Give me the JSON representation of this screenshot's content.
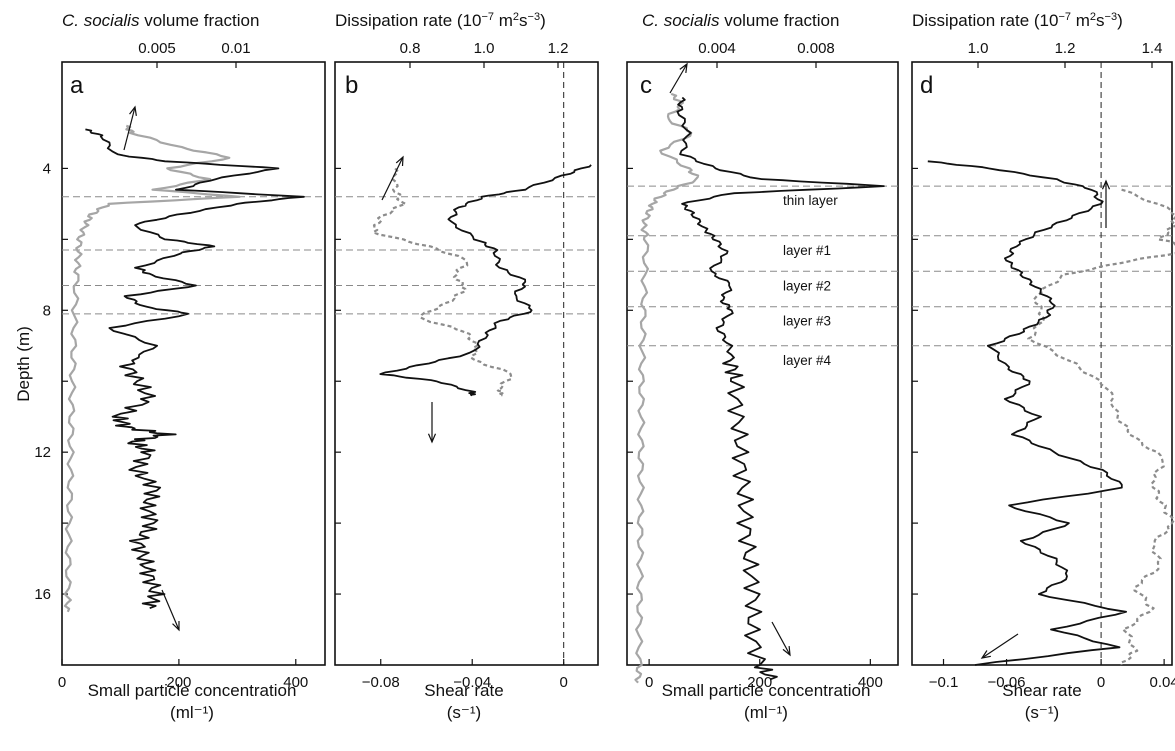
{
  "chart_data": [
    {
      "panel": "a",
      "type": "line",
      "top_axis": {
        "title_italic": "C. socialis",
        "title_rest": " volume fraction",
        "ticks": [
          "0.005",
          "0.01"
        ],
        "tick_values": [
          0.005,
          0.01
        ]
      },
      "bottom_axis": {
        "title": "Small particle concentration",
        "unit": "(ml⁻¹)",
        "ticks": [
          "0",
          "200",
          "400"
        ],
        "xlim": [
          0,
          450
        ]
      },
      "left_axis": {
        "title": "Depth (m)",
        "ticks": [
          "4",
          "8",
          "12",
          "16"
        ],
        "ylim": [
          1.0,
          18.0
        ],
        "inverted": true
      },
      "hlines": [
        4.8,
        6.3,
        7.3,
        8.1
      ],
      "series": [
        {
          "role": "small-particle-concentration",
          "color": "#111111",
          "y": [
            2.9,
            3.1,
            3.6,
            3.8,
            4.0,
            4.3,
            4.6,
            4.8,
            5.0,
            5.3,
            5.6,
            6.0,
            6.2,
            6.4,
            6.8,
            7.0,
            7.3,
            7.6,
            7.9,
            8.1,
            8.5,
            9.0,
            9.5,
            10.0,
            10.5,
            11.0,
            11.3,
            11.5,
            11.7,
            12.0,
            12.5,
            13.0,
            13.5,
            14.0,
            14.5,
            15.0,
            15.5,
            16.0,
            16.4
          ],
          "x": [
            40,
            70,
            90,
            180,
            370,
            260,
            200,
            410,
            300,
            200,
            120,
            180,
            260,
            200,
            130,
            150,
            230,
            110,
            140,
            220,
            80,
            160,
            110,
            130,
            150,
            95,
            110,
            180,
            120,
            150,
            125,
            160,
            145,
            155,
            130,
            140,
            150,
            160,
            150
          ]
        },
        {
          "role": "c-socialis-volume-fraction",
          "color": "#a6a6a6",
          "y": [
            2.8,
            3.0,
            3.4,
            3.7,
            4.0,
            4.3,
            4.6,
            4.8,
            5.0,
            5.3,
            5.6,
            6.0,
            6.5,
            7.0,
            8.0,
            9.0,
            10.0,
            11.0,
            12.0,
            13.0,
            14.0,
            15.0,
            16.0,
            16.5
          ],
          "x": [
            110,
            120,
            200,
            290,
            180,
            250,
            160,
            300,
            80,
            50,
            40,
            30,
            28,
            25,
            22,
            20,
            18,
            16,
            15,
            14,
            12,
            11,
            10,
            10
          ]
        }
      ],
      "arrows": [
        "up-right",
        "down-right"
      ]
    },
    {
      "panel": "b",
      "type": "line",
      "top_axis": {
        "title": "Dissipation rate (10",
        "exponent": "−7",
        "title_mid": " m",
        "exponent2": "2",
        "title_mid2": "s",
        "exponent3": "−3",
        "title_end": ")",
        "ticks": [
          "0.8",
          "1.0",
          "1.2"
        ],
        "tick_values": [
          0.8,
          1.0,
          1.2
        ]
      },
      "bottom_axis": {
        "title": "Shear rate",
        "unit": "(s⁻¹)",
        "ticks": [
          "−0.08",
          "−0.04",
          "0"
        ],
        "xlim": [
          -0.1,
          0.015
        ]
      },
      "hlines": [
        4.8,
        6.3,
        7.3,
        8.1
      ],
      "vline": 0,
      "series": [
        {
          "role": "shear-rate",
          "color": "#111111",
          "dash": "none",
          "y": [
            3.9,
            4.2,
            4.6,
            4.8,
            5.1,
            5.5,
            6.0,
            6.3,
            6.8,
            7.2,
            7.6,
            8.0,
            8.3,
            8.7,
            9.2,
            9.5,
            9.8,
            10.0,
            10.3,
            10.4
          ],
          "x": [
            0.012,
            0.0,
            -0.018,
            -0.035,
            -0.046,
            -0.05,
            -0.038,
            -0.03,
            -0.028,
            -0.016,
            -0.022,
            -0.013,
            -0.028,
            -0.034,
            -0.04,
            -0.06,
            -0.08,
            -0.055,
            -0.04,
            -0.04
          ]
        },
        {
          "role": "dissipation-rate",
          "color": "#8c8c8c",
          "dash": "4,3",
          "y": [
            4.0,
            4.6,
            5.0,
            5.4,
            5.8,
            6.2,
            6.6,
            7.0,
            7.4,
            7.8,
            8.2,
            8.6,
            9.0,
            9.4,
            9.8,
            10.2,
            10.4
          ],
          "x": [
            0.76,
            0.76,
            0.78,
            0.72,
            0.7,
            0.85,
            0.96,
            0.92,
            0.95,
            0.9,
            0.82,
            0.95,
            0.98,
            0.97,
            1.08,
            1.04,
            1.05
          ]
        }
      ],
      "arrows": [
        "up-right",
        "down"
      ]
    },
    {
      "panel": "c",
      "type": "line",
      "top_axis": {
        "title_italic": "C. socialis",
        "title_rest": " volume fraction",
        "ticks": [
          "0.004",
          "0.008"
        ],
        "tick_values": [
          0.004,
          0.008
        ]
      },
      "bottom_axis": {
        "title": "Small particle concentration",
        "unit": "(ml⁻¹)",
        "ticks": [
          "0",
          "200",
          "400"
        ],
        "xlim": [
          -40,
          450
        ]
      },
      "hlines": [
        4.5,
        5.9,
        6.9,
        7.9,
        9.0
      ],
      "layer_labels": [
        "thin layer",
        "layer #1",
        "layer #2",
        "layer #3",
        "layer #4"
      ],
      "series": [
        {
          "role": "small-particle-concentration",
          "color": "#111111",
          "y": [
            2.0,
            2.4,
            3.0,
            3.6,
            4.0,
            4.3,
            4.5,
            4.7,
            5.0,
            5.3,
            5.7,
            6.0,
            6.4,
            6.9,
            7.3,
            7.7,
            8.0,
            8.5,
            9.0,
            9.5,
            10.0,
            11.0,
            12.0,
            13.0,
            14.0,
            15.0,
            16.0,
            17.0,
            18.0,
            18.4
          ],
          "x": [
            60,
            55,
            70,
            60,
            120,
            200,
            430,
            150,
            60,
            80,
            100,
            120,
            140,
            110,
            150,
            130,
            150,
            125,
            145,
            150,
            155,
            160,
            165,
            170,
            175,
            180,
            190,
            185,
            200,
            220
          ]
        },
        {
          "role": "c-socialis-volume-fraction",
          "color": "#a6a6a6",
          "y": [
            1.9,
            2.2,
            2.6,
            3.0,
            3.5,
            4.0,
            4.3,
            4.6,
            4.9,
            5.2,
            5.6,
            6.0,
            7.0,
            8.0,
            9.0,
            10.0,
            11.0,
            12.0,
            13.0,
            14.0,
            15.0,
            16.0,
            17.0,
            18.0,
            18.5
          ],
          "x": [
            40,
            60,
            30,
            80,
            20,
            70,
            90,
            40,
            10,
            0,
            -10,
            -5,
            -8,
            -10,
            -12,
            -14,
            -14,
            -15,
            -15,
            -16,
            -16,
            -17,
            -18,
            -18,
            -20
          ]
        }
      ],
      "arrows": [
        "up-right",
        "down-right"
      ]
    },
    {
      "panel": "d",
      "type": "line",
      "top_axis": {
        "title": "Dissipation rate (10",
        "exponent": "−7",
        "title_mid": " m",
        "exponent2": "2",
        "title_mid2": "s",
        "exponent3": "−3",
        "title_end": ")",
        "ticks": [
          "1.0",
          "1.2",
          "1.4"
        ],
        "tick_values": [
          1.0,
          1.2,
          1.4
        ]
      },
      "bottom_axis": {
        "title": "Shear rate",
        "unit": "(s⁻¹)",
        "ticks": [
          "−0.1",
          "−0.06",
          "0",
          "0.04"
        ],
        "xlim": [
          -0.12,
          0.045
        ]
      },
      "hlines": [
        4.5,
        5.9,
        6.9,
        7.9,
        9.0
      ],
      "vline": 0,
      "series": [
        {
          "role": "shear-rate",
          "color": "#111111",
          "dash": "none",
          "y": [
            3.8,
            4.0,
            4.3,
            4.6,
            5.0,
            5.4,
            5.8,
            6.2,
            6.6,
            7.0,
            7.4,
            7.8,
            8.2,
            8.6,
            9.0,
            9.6,
            10.0,
            10.5,
            11.0,
            11.5,
            12.0,
            12.5,
            13.0,
            13.5,
            14.0,
            14.5,
            15.0,
            15.5,
            16.0,
            16.5,
            17.0,
            17.5,
            18.0
          ],
          "x": [
            -0.11,
            -0.07,
            -0.03,
            -0.005,
            0.0,
            -0.02,
            -0.04,
            -0.055,
            -0.06,
            -0.05,
            -0.04,
            -0.03,
            -0.035,
            -0.05,
            -0.07,
            -0.06,
            -0.045,
            -0.06,
            -0.04,
            -0.055,
            -0.03,
            0.0,
            0.015,
            -0.06,
            -0.02,
            -0.05,
            -0.03,
            -0.02,
            -0.04,
            0.015,
            -0.03,
            0.01,
            -0.08
          ]
        },
        {
          "role": "dissipation-rate",
          "color": "#8c8c8c",
          "dash": "4,3",
          "y": [
            4.6,
            5.2,
            5.6,
            6.0,
            6.3,
            6.6,
            7.0,
            7.6,
            8.2,
            8.8,
            9.5,
            10.2,
            11.0,
            11.6,
            12.2,
            12.8,
            13.4,
            14.0,
            14.6,
            15.2,
            15.8,
            16.4,
            17.0,
            17.6,
            18.0
          ],
          "x": [
            1.33,
            1.45,
            1.45,
            1.42,
            1.5,
            1.35,
            1.2,
            1.13,
            1.15,
            1.12,
            1.22,
            1.3,
            1.32,
            1.36,
            1.43,
            1.4,
            1.42,
            1.45,
            1.4,
            1.42,
            1.36,
            1.4,
            1.34,
            1.36,
            1.33
          ]
        }
      ],
      "arrows": [
        "up",
        "down-left"
      ]
    }
  ]
}
